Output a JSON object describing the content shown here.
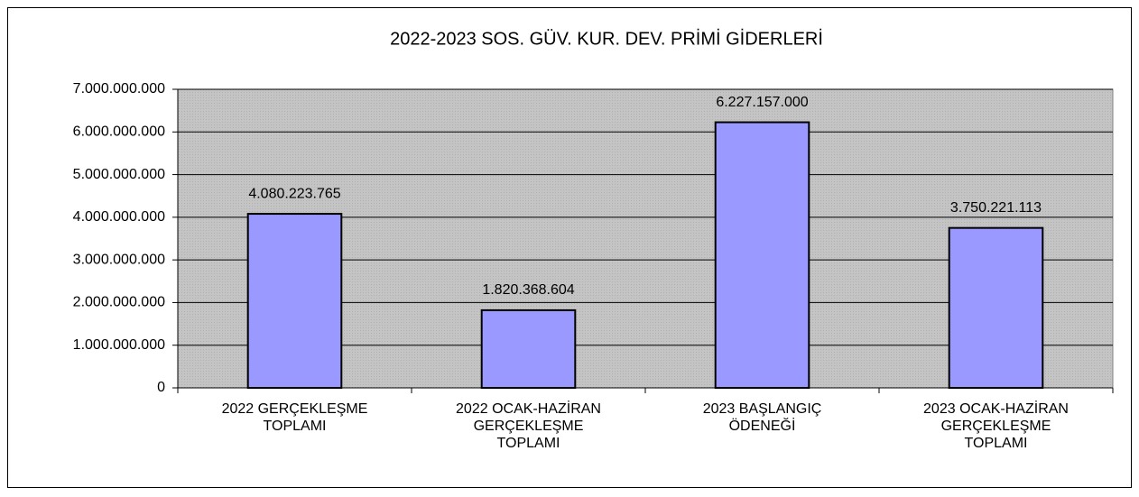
{
  "chart_data": {
    "type": "bar",
    "title": "2022-2023 SOS. GÜV. KUR. DEV. PRİMİ GİDERLERİ",
    "categories": [
      "2022 GERÇEKLEŞME TOPLAMI",
      "2022 OCAK-HAZİRAN GERÇEKLEŞME TOPLAMI",
      "2023 BAŞLANGIÇ ÖDENEĞİ",
      "2023 OCAK-HAZİRAN GERÇEKLEŞME TOPLAMI"
    ],
    "values": [
      4080223765,
      1820368604,
      6227157000,
      3750221113
    ],
    "value_labels": [
      "4.080.223.765",
      "1.820.368.604",
      "6.227.157.000",
      "3.750.221.113"
    ],
    "color": "#9999ff",
    "ylim": [
      0,
      7000000000
    ],
    "yticks": [
      0,
      {
        "value": 1000000000,
        "label": "1.000.000.000"
      },
      {
        "value": 2000000000,
        "label": "2.000.000.000"
      },
      {
        "value": 3000000000,
        "label": "3.000.000.000"
      },
      {
        "value": 4000000000,
        "label": "4.000.000.000"
      },
      {
        "value": 5000000000,
        "label": "5.000.000.000"
      },
      {
        "value": 6000000000,
        "label": "6.000.000.000"
      },
      {
        "value": 7000000000,
        "label": "7.000.000.000"
      }
    ],
    "grid": true
  }
}
